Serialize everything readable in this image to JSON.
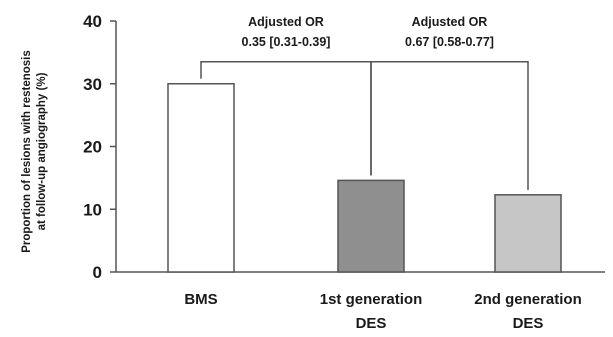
{
  "chart_data": {
    "type": "bar",
    "categories": [
      [
        "BMS"
      ],
      [
        "1st generation",
        "DES"
      ],
      [
        "2nd generation",
        "DES"
      ]
    ],
    "values": [
      30,
      14.6,
      12.3
    ],
    "bar_colors": [
      "#ffffff",
      "#8f8f8f",
      "#c6c6c6"
    ],
    "ylabel": [
      "Proportion of lesions with restenosis",
      "at follow-up angiography (%)"
    ],
    "ylim": [
      0,
      40
    ],
    "yticks": [
      0,
      10,
      20,
      30,
      40
    ],
    "grid": false,
    "legend": "none",
    "annotations": [
      {
        "line1": "Adjusted OR",
        "line2": "0.35 [0.31-0.39]",
        "from_category": 0,
        "to_category": 1,
        "bracket_y": 33.5
      },
      {
        "line1": "Adjusted OR",
        "line2": "0.67 [0.58-0.77]",
        "from_category": 1,
        "to_category": 2,
        "bracket_y": 33.5
      }
    ]
  }
}
